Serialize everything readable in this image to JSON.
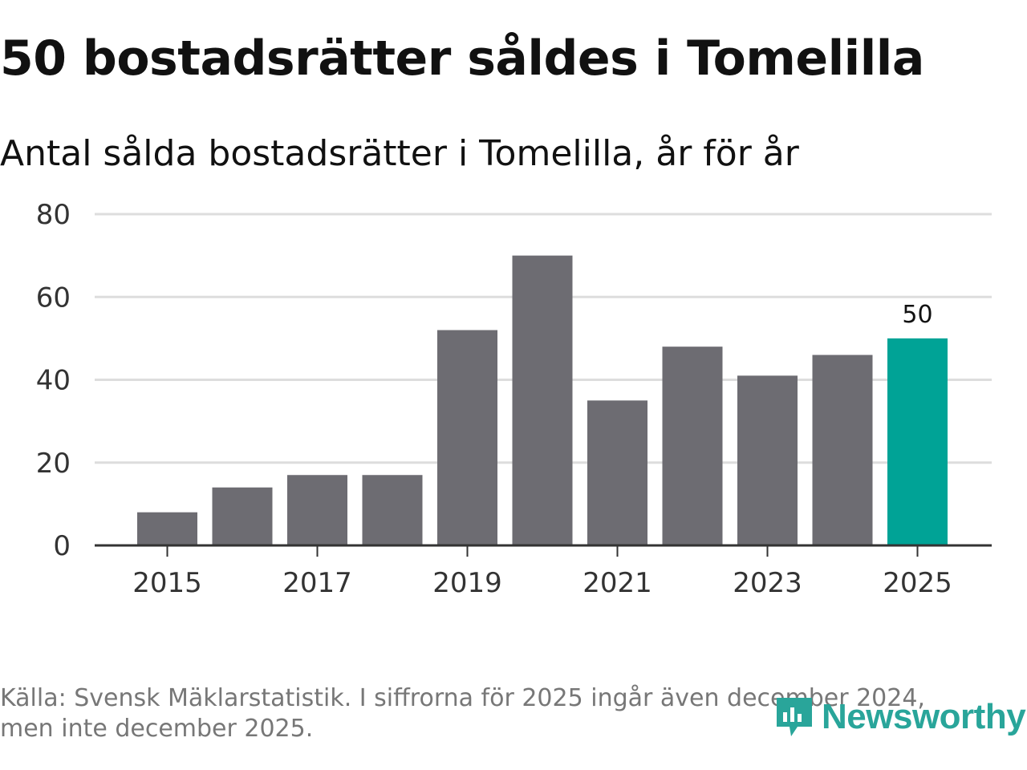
{
  "title": "50 bostadsrätter såldes i Tomelilla",
  "subtitle": "Antal sålda bostadsrätter i Tomelilla, år för år",
  "footer": {
    "line1": "Källa: Svensk Mäklarstatistik. I siffrorna för 2025 ingår även december 2024,",
    "line2": "men inte december 2025."
  },
  "logo": {
    "text": "Newsworthy"
  },
  "colors": {
    "bar": "#6d6c72",
    "highlight": "#00a396",
    "grid": "#dddddd",
    "axis": "#333333"
  },
  "chart_data": {
    "type": "bar",
    "title": "50 bostadsrätter såldes i Tomelilla",
    "subtitle": "Antal sålda bostadsrätter i Tomelilla, år för år",
    "categories": [
      "2015",
      "2016",
      "2017",
      "2018",
      "2019",
      "2020",
      "2021",
      "2022",
      "2023",
      "2024",
      "2025"
    ],
    "values": [
      8,
      14,
      17,
      17,
      52,
      70,
      35,
      48,
      41,
      46,
      50
    ],
    "highlight_index": 10,
    "value_labels": [
      {
        "index": 10,
        "text": "50"
      }
    ],
    "y_ticks": [
      0,
      20,
      40,
      60,
      80
    ],
    "x_tick_labels": [
      "2015",
      "2017",
      "2019",
      "2021",
      "2023",
      "2025"
    ],
    "ylim": [
      0,
      80
    ],
    "xlabel": "",
    "ylabel": "",
    "grid": true
  }
}
